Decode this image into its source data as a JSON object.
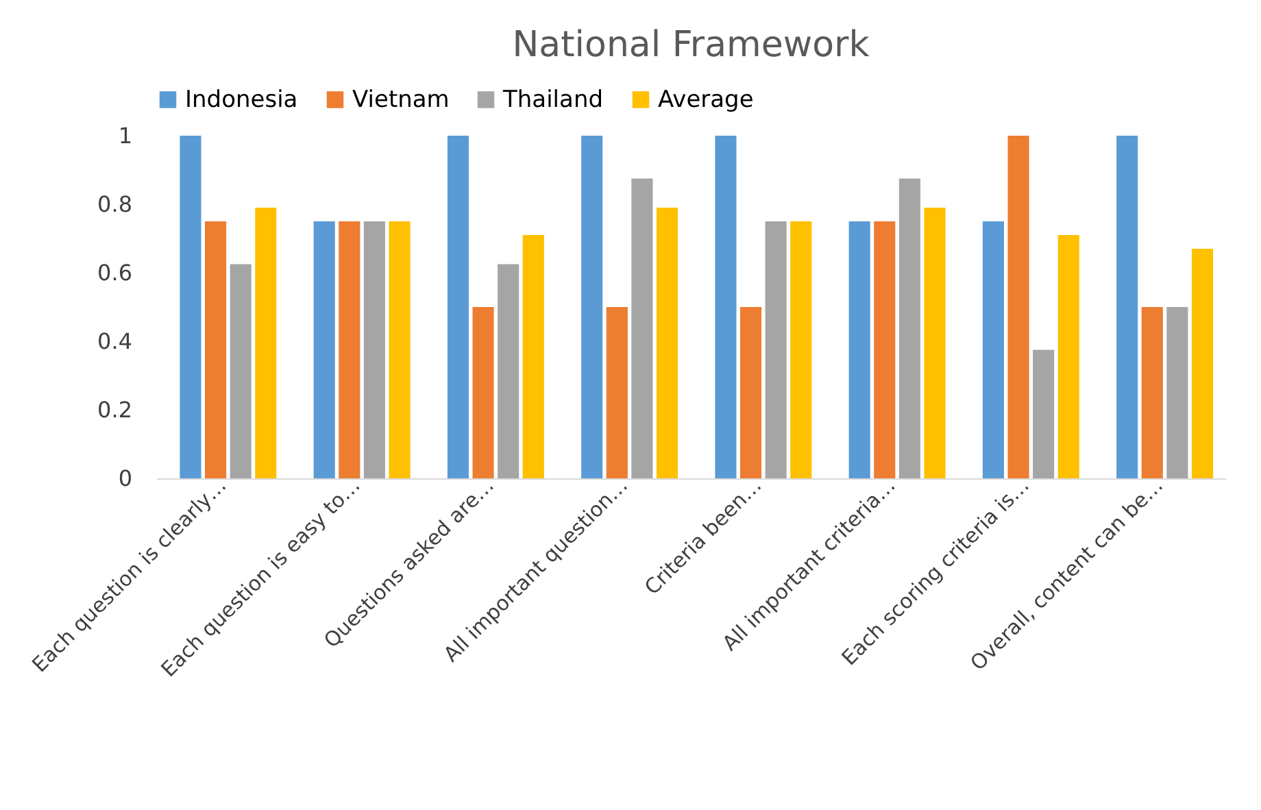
{
  "chart_data": {
    "type": "bar",
    "title": "National Framework",
    "categories": [
      "Each question is clearly…",
      "Each question is easy to…",
      "Questions asked are…",
      "All important question…",
      "Criteria been…",
      "All important criteria…",
      "Each scoring criteria is…",
      "Overall, content can be…"
    ],
    "series": [
      {
        "name": "Indonesia",
        "color": "#5b9bd5",
        "values": [
          1,
          0.75,
          1,
          1,
          1,
          0.75,
          0.75,
          1
        ]
      },
      {
        "name": "Vietnam",
        "color": "#ed7d31",
        "values": [
          0.75,
          0.75,
          0.5,
          0.5,
          0.5,
          0.75,
          1,
          0.5
        ]
      },
      {
        "name": "Thailand",
        "color": "#a5a5a5",
        "values": [
          0.625,
          0.75,
          0.625,
          0.875,
          0.75,
          0.875,
          0.375,
          0.5
        ]
      },
      {
        "name": "Average",
        "color": "#ffc000",
        "values": [
          0.79,
          0.75,
          0.71,
          0.79,
          0.75,
          0.79,
          0.71,
          0.67
        ]
      }
    ],
    "ylim": [
      0,
      1
    ],
    "yticks": [
      0,
      0.2,
      0.4,
      0.6,
      0.8,
      1
    ],
    "grid": false,
    "legend": "top"
  }
}
